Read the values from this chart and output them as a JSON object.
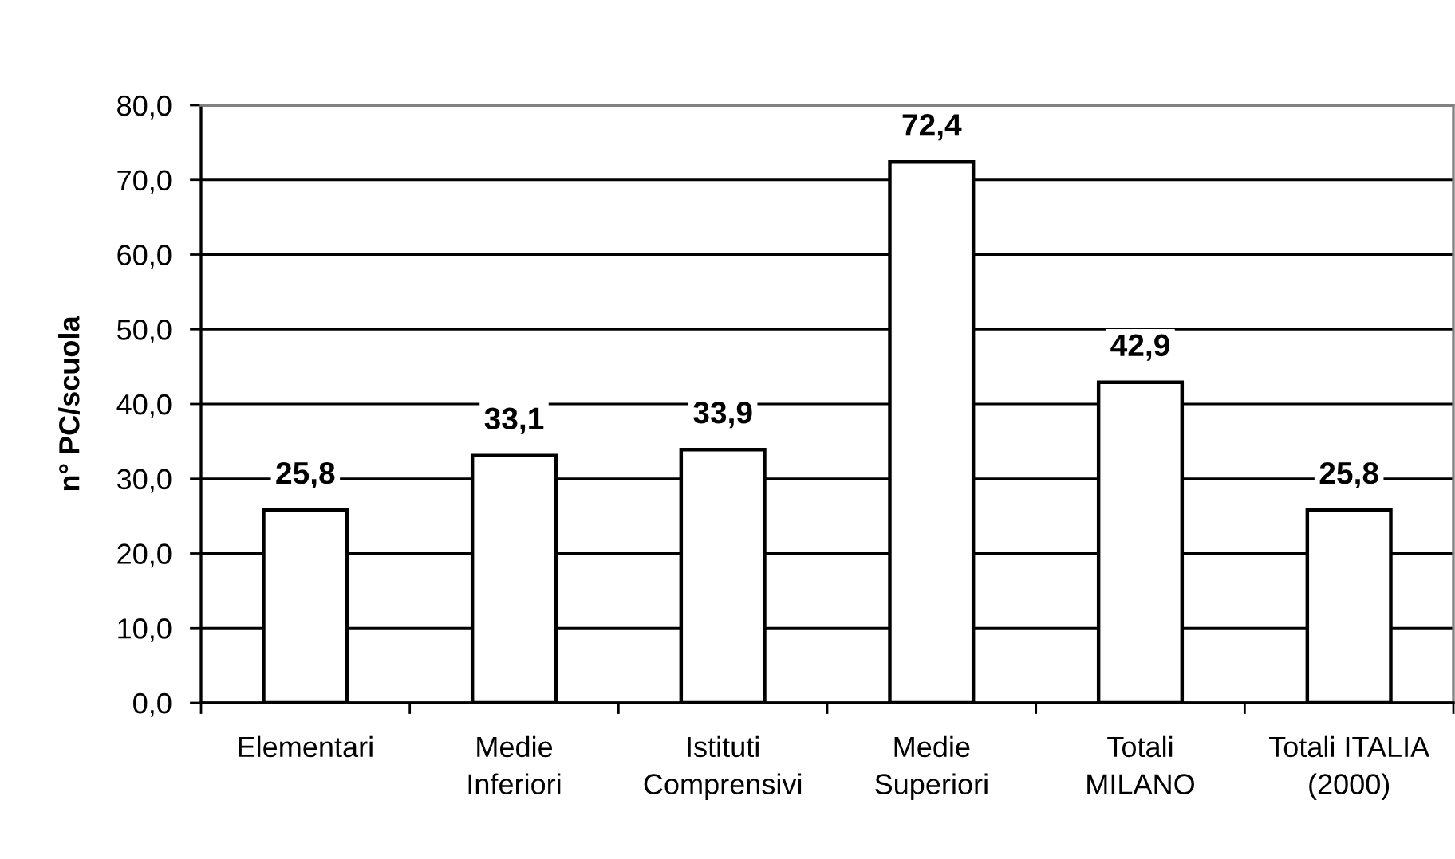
{
  "chart_data": {
    "type": "bar",
    "ylabel": "n° PC/scuola",
    "categories": [
      "Elementari",
      "Medie\nInferiori",
      "Istituti\nComprensivi",
      "Medie\nSuperiori",
      "Totali\nMILANO",
      "Totali ITALIA\n(2000)"
    ],
    "values": [
      25.8,
      33.1,
      33.9,
      72.4,
      42.9,
      25.8
    ],
    "color": "#ffffff",
    "value_labels": [
      "25,8",
      "33,1",
      "33,9",
      "72,4",
      "42,9",
      "25,8"
    ],
    "ylim": [
      0,
      80
    ],
    "yticks": [
      {
        "value": 0,
        "label": "0,0"
      },
      {
        "value": 10,
        "label": "10,0"
      },
      {
        "value": 20,
        "label": "20,0"
      },
      {
        "value": 30,
        "label": "30,0"
      },
      {
        "value": 40,
        "label": "40,0"
      },
      {
        "value": 50,
        "label": "50,0"
      },
      {
        "value": 60,
        "label": "60,0"
      },
      {
        "value": 70,
        "label": "70,0"
      },
      {
        "value": 80,
        "label": "80,0"
      }
    ],
    "grid": "y",
    "legend": false
  }
}
